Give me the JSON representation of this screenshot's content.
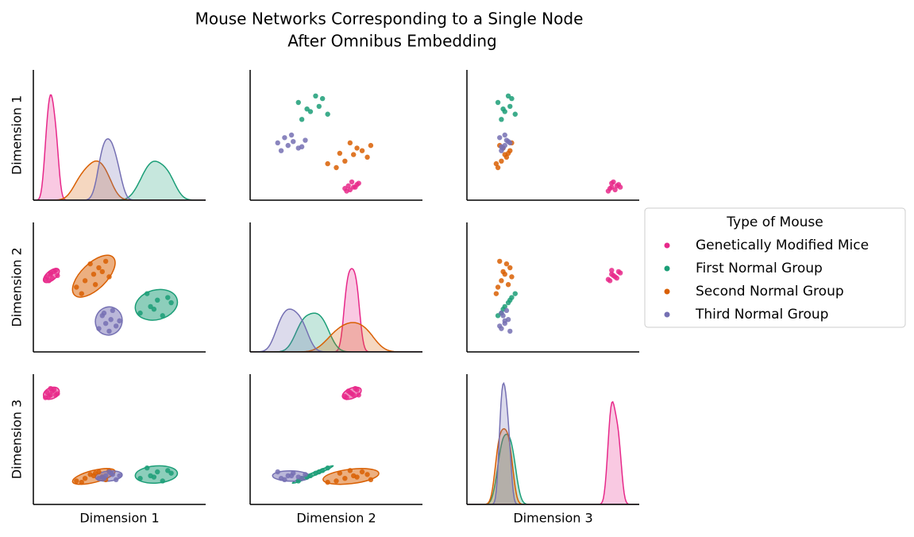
{
  "chart_data": {
    "type": "pairplot",
    "title": [
      "Mouse Networks Corresponding to a Single Node",
      "After Omnibus Embedding"
    ],
    "variables": [
      "Dimension 1",
      "Dimension 2",
      "Dimension 3"
    ],
    "xlim": [
      0,
      100
    ],
    "ylim": [
      0,
      100
    ],
    "legend_title": "Type of Mouse",
    "legend_position": "right",
    "series": [
      {
        "name": "Genetically Modified Mice",
        "color": "#e7298a",
        "values": [
          [
            8,
            58,
            86
          ],
          [
            10,
            60,
            84
          ],
          [
            12,
            62,
            88
          ],
          [
            9,
            55,
            83
          ],
          [
            11,
            57,
            87
          ],
          [
            14,
            59,
            85
          ],
          [
            7,
            56,
            82
          ],
          [
            10,
            61,
            89
          ],
          [
            13,
            63,
            84
          ]
        ]
      },
      {
        "name": "First Normal Group",
        "color": "#1b9e77",
        "values": [
          [
            62,
            30,
            20
          ],
          [
            68,
            35,
            22
          ],
          [
            72,
            40,
            25
          ],
          [
            75,
            28,
            18
          ],
          [
            66,
            45,
            28
          ],
          [
            80,
            38,
            24
          ],
          [
            70,
            33,
            21
          ],
          [
            78,
            42,
            26
          ]
        ]
      },
      {
        "name": "Second Normal Group",
        "color": "#d95f02",
        "values": [
          [
            25,
            50,
            18
          ],
          [
            30,
            55,
            20
          ],
          [
            35,
            60,
            22
          ],
          [
            38,
            65,
            25
          ],
          [
            42,
            70,
            19
          ],
          [
            28,
            45,
            17
          ],
          [
            33,
            68,
            23
          ],
          [
            40,
            62,
            21
          ],
          [
            36,
            52,
            24
          ],
          [
            44,
            58,
            26
          ]
        ]
      },
      {
        "name": "Third Normal Group",
        "color": "#7570b3",
        "values": [
          [
            38,
            18,
            20
          ],
          [
            42,
            22,
            22
          ],
          [
            45,
            25,
            24
          ],
          [
            48,
            20,
            19
          ],
          [
            40,
            28,
            21
          ],
          [
            46,
            32,
            23
          ],
          [
            44,
            16,
            25
          ],
          [
            50,
            24,
            22
          ],
          [
            41,
            30,
            20
          ]
        ]
      }
    ]
  }
}
